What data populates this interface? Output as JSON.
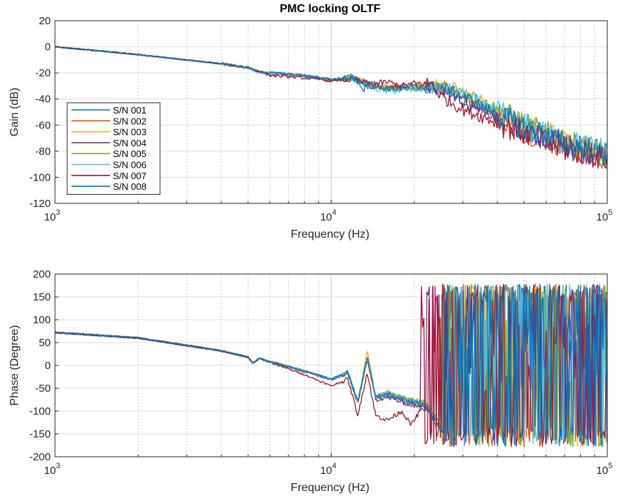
{
  "chart_data": [
    {
      "type": "line",
      "title": "PMC locking OLTF",
      "xlabel": "Frequency (Hz)",
      "ylabel": "Gain (dB)",
      "xscale": "log",
      "xlim": [
        1000,
        100000
      ],
      "ylim": [
        -120,
        20
      ],
      "yticks": [
        "20",
        "0",
        "-20",
        "-40",
        "-60",
        "-80",
        "-100",
        "-120"
      ],
      "xticks": [
        {
          "base": "10",
          "exp": "3"
        },
        {
          "base": "10",
          "exp": "4"
        },
        {
          "base": "10",
          "exp": "5"
        }
      ],
      "grid": true,
      "legend": "left",
      "series": [
        {
          "name": "S/N 001",
          "color": "#0072BD",
          "x": [
            1000,
            2000,
            4000,
            5000,
            5400,
            8000,
            10000,
            11500,
            12000,
            13000,
            14000,
            16000,
            20000,
            25000,
            30000,
            40000,
            50000,
            70000,
            100000
          ],
          "y": [
            0,
            -6,
            -13,
            -16,
            -19,
            -22,
            -25,
            -24,
            -23,
            -33,
            -28,
            -33,
            -30,
            -33,
            -42,
            -53,
            -62,
            -74,
            -82
          ]
        },
        {
          "name": "S/N 002",
          "color": "#D95319",
          "x": [
            1000,
            2000,
            4000,
            5000,
            5400,
            8000,
            10000,
            12000,
            14000,
            16000,
            20000,
            25000,
            30000,
            40000,
            50000,
            70000,
            100000
          ],
          "y": [
            0,
            -6,
            -13,
            -16,
            -19,
            -22,
            -25,
            -24,
            -29,
            -31,
            -30,
            -30,
            -38,
            -52,
            -64,
            -76,
            -85
          ]
        },
        {
          "name": "S/N 003",
          "color": "#EDB120",
          "x": [
            1000,
            2000,
            4000,
            5000,
            5400,
            8000,
            10000,
            12000,
            14000,
            16000,
            20000,
            25000,
            30000,
            40000,
            50000,
            70000,
            100000
          ],
          "y": [
            0,
            -6,
            -13,
            -16,
            -19,
            -22,
            -25,
            -24,
            -29,
            -31,
            -32,
            -29,
            -34,
            -48,
            -60,
            -72,
            -80
          ]
        },
        {
          "name": "S/N 004",
          "color": "#7E2F8E",
          "x": [
            1000,
            2000,
            4000,
            5000,
            5400,
            6000,
            8000,
            10000,
            12000,
            14000,
            16000,
            20000,
            25000,
            30000,
            40000,
            50000,
            70000,
            100000
          ],
          "y": [
            0,
            -6,
            -13,
            -16,
            -19,
            -21,
            -23,
            -26,
            -24,
            -30,
            -32,
            -31,
            -32,
            -40,
            -55,
            -64,
            -76,
            -84
          ]
        },
        {
          "name": "S/N 005",
          "color": "#77AC30",
          "x": [
            1000,
            2000,
            4000,
            5000,
            5400,
            8000,
            10000,
            12000,
            14000,
            16000,
            20000,
            25000,
            30000,
            40000,
            50000,
            70000,
            100000
          ],
          "y": [
            0,
            -6,
            -13,
            -16,
            -19,
            -22,
            -25,
            -24,
            -30,
            -32,
            -32,
            -30,
            -35,
            -48,
            -60,
            -72,
            -86
          ]
        },
        {
          "name": "S/N 006",
          "color": "#4DBEEE",
          "x": [
            1000,
            2000,
            4000,
            5000,
            5400,
            8000,
            10000,
            12000,
            14000,
            16000,
            20000,
            25000,
            30000,
            40000,
            50000,
            70000,
            100000
          ],
          "y": [
            0,
            -6,
            -13,
            -16,
            -19,
            -22,
            -25,
            -24,
            -31,
            -34,
            -33,
            -31,
            -36,
            -50,
            -60,
            -72,
            -80
          ]
        },
        {
          "name": "S/N 007",
          "color": "#A2142F",
          "x": [
            1000,
            2000,
            4000,
            5000,
            5400,
            6000,
            8000,
            10000,
            12000,
            14000,
            16000,
            18000,
            20000,
            23000,
            25000,
            28000,
            30000,
            40000,
            50000,
            70000,
            100000
          ],
          "y": [
            0,
            -6,
            -13,
            -16,
            -18,
            -22,
            -24,
            -26,
            -25,
            -29,
            -27,
            -30,
            -28,
            -28,
            -38,
            -44,
            -48,
            -58,
            -66,
            -78,
            -86
          ]
        },
        {
          "name": "S/N 008",
          "color": "#0072BD",
          "x": [
            1000,
            2000,
            4000,
            5000,
            5400,
            8000,
            10000,
            12000,
            14000,
            16000,
            20000,
            25000,
            30000,
            40000,
            50000,
            70000,
            100000
          ],
          "y": [
            0,
            -6,
            -13,
            -16,
            -19,
            -22,
            -25,
            -24,
            -30,
            -32,
            -31,
            -31,
            -38,
            -52,
            -62,
            -74,
            -82
          ]
        }
      ]
    },
    {
      "type": "line",
      "title": "",
      "xlabel": "Frequency (Hz)",
      "ylabel": "Phase (Degree)",
      "xscale": "log",
      "xlim": [
        1000,
        100000
      ],
      "ylim": [
        -200,
        200
      ],
      "yticks": [
        "200",
        "150",
        "100",
        "50",
        "0",
        "-50",
        "-100",
        "-150",
        "-200"
      ],
      "xticks": [
        {
          "base": "10",
          "exp": "3"
        },
        {
          "base": "10",
          "exp": "4"
        },
        {
          "base": "10",
          "exp": "5"
        }
      ],
      "grid": true,
      "series": [
        {
          "name": "S/N 001",
          "color": "#0072BD",
          "x": [
            1000,
            2000,
            4000,
            5000,
            5200,
            5500,
            8000,
            10000,
            11500,
            12500,
            13500,
            14500,
            16000,
            19000,
            22000,
            25000
          ],
          "y": [
            72,
            60,
            32,
            18,
            5,
            15,
            -12,
            -30,
            -15,
            -80,
            15,
            -70,
            -65,
            -80,
            -90,
            -140
          ]
        },
        {
          "name": "S/N 002",
          "color": "#D95319",
          "x": [
            1000,
            2000,
            4000,
            5000,
            5200,
            5500,
            8000,
            10000,
            11500,
            12500,
            13500,
            14500,
            16000,
            19000,
            22000,
            24000
          ],
          "y": [
            72,
            60,
            32,
            18,
            5,
            15,
            -12,
            -30,
            -15,
            -80,
            15,
            -70,
            -60,
            -78,
            -88,
            -135
          ]
        },
        {
          "name": "S/N 003",
          "color": "#EDB120",
          "x": [
            1000,
            2000,
            4000,
            5000,
            5200,
            5500,
            8000,
            10000,
            11500,
            12500,
            13500,
            14500,
            16000,
            19000,
            22000,
            25000
          ],
          "y": [
            72,
            60,
            32,
            18,
            5,
            15,
            -12,
            -30,
            -15,
            -80,
            35,
            -70,
            -58,
            -75,
            -85,
            -130
          ]
        },
        {
          "name": "S/N 004",
          "color": "#7E2F8E",
          "x": [
            1000,
            2000,
            4000,
            5000,
            5200,
            5500,
            8000,
            10000,
            11500,
            12500,
            13500,
            14500,
            16000,
            19000,
            22000
          ],
          "y": [
            72,
            60,
            32,
            18,
            5,
            15,
            -14,
            -32,
            -18,
            -85,
            20,
            -75,
            -70,
            -85,
            -95
          ]
        },
        {
          "name": "S/N 005",
          "color": "#77AC30",
          "x": [
            1000,
            2000,
            4000,
            5000,
            5200,
            5500,
            8000,
            10000,
            11500,
            12500,
            13500,
            14500,
            16000,
            19000,
            22000,
            25000
          ],
          "y": [
            72,
            60,
            32,
            18,
            5,
            15,
            -12,
            -30,
            -15,
            -80,
            15,
            -70,
            -62,
            -72,
            -80,
            -130
          ]
        },
        {
          "name": "S/N 006",
          "color": "#4DBEEE",
          "x": [
            1000,
            2000,
            4000,
            5000,
            5200,
            5500,
            8000,
            10000,
            11500,
            12500,
            13500,
            14500,
            16000,
            19000,
            22000,
            25000
          ],
          "y": [
            72,
            60,
            32,
            18,
            5,
            15,
            -12,
            -30,
            -15,
            -80,
            15,
            -70,
            -60,
            -75,
            -85,
            -140
          ]
        },
        {
          "name": "S/N 007",
          "color": "#A2142F",
          "x": [
            1000,
            2000,
            4000,
            5000,
            5200,
            5500,
            8000,
            10000,
            11500,
            12500,
            13500,
            14500,
            16000,
            18000,
            19500,
            21000
          ],
          "y": [
            72,
            60,
            32,
            18,
            5,
            15,
            -20,
            -45,
            -30,
            -110,
            -15,
            -110,
            -120,
            -100,
            -130,
            -100
          ]
        },
        {
          "name": "S/N 008",
          "color": "#0072BD",
          "x": [
            1000,
            2000,
            4000,
            5000,
            5200,
            5500,
            8000,
            10000,
            11500,
            12500,
            13500,
            14500,
            16000,
            19000,
            22000,
            25000
          ],
          "y": [
            72,
            60,
            32,
            18,
            5,
            15,
            -12,
            -30,
            -15,
            -80,
            15,
            -70,
            -62,
            -78,
            -88,
            -138
          ]
        }
      ]
    }
  ]
}
